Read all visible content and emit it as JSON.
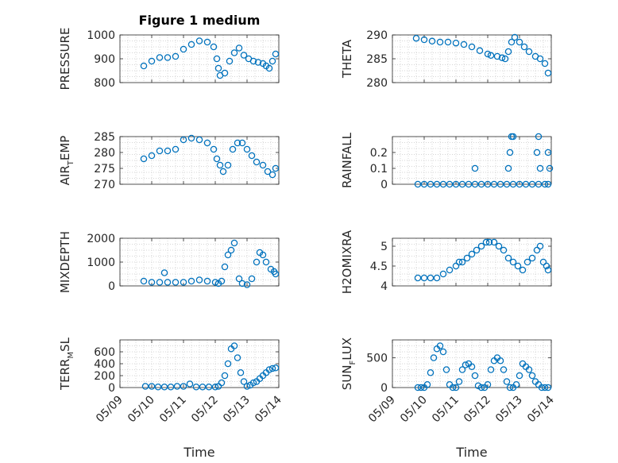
{
  "figure": {
    "title": "Figure 1 medium",
    "x_label": "Time",
    "x_ticks": [
      "05/09",
      "05/10",
      "05/11",
      "05/12",
      "05/13",
      "05/14"
    ]
  },
  "colors": {
    "marker": "#0072bd",
    "axis": "#262626",
    "grid": "#c8c8c8"
  },
  "chart_data": [
    {
      "type": "scatter",
      "ylabel_main": "PRESSURE",
      "ylabel_sub": "",
      "ylim": [
        800,
        1000
      ],
      "y_ticks": [
        800,
        900,
        1000
      ],
      "x": [
        9.75,
        10.0,
        10.25,
        10.5,
        10.75,
        11.0,
        11.25,
        11.5,
        11.75,
        11.95,
        12.05,
        12.1,
        12.15,
        12.3,
        12.45,
        12.6,
        12.75,
        12.9,
        13.05,
        13.2,
        13.35,
        13.5,
        13.6,
        13.7,
        13.8,
        13.9
      ],
      "y": [
        870,
        890,
        905,
        905,
        910,
        940,
        960,
        975,
        970,
        950,
        900,
        860,
        830,
        840,
        890,
        925,
        945,
        915,
        900,
        890,
        885,
        880,
        870,
        860,
        890,
        920
      ]
    },
    {
      "type": "scatter",
      "ylabel_main": "THETA",
      "ylabel_sub": "",
      "ylim": [
        280,
        290
      ],
      "y_ticks": [
        280,
        285,
        290
      ],
      "x": [
        9.75,
        10.0,
        10.25,
        10.5,
        10.75,
        11.0,
        11.25,
        11.5,
        11.75,
        12.0,
        12.1,
        12.3,
        12.45,
        12.55,
        12.65,
        12.75,
        12.85,
        13.0,
        13.15,
        13.3,
        13.5,
        13.65,
        13.8,
        13.9
      ],
      "y": [
        289.3,
        289.0,
        288.7,
        288.5,
        288.5,
        288.3,
        288.0,
        287.5,
        286.7,
        286.0,
        285.7,
        285.5,
        285.2,
        285.0,
        286.5,
        288.5,
        289.5,
        288.5,
        287.5,
        286.5,
        285.5,
        285.0,
        284.0,
        282.0
      ]
    },
    {
      "type": "scatter",
      "ylabel_main": "AIR",
      "ylabel_sub": "T",
      "ylabel_rest": "EMP",
      "ylim": [
        270,
        285
      ],
      "y_ticks": [
        270,
        275,
        280,
        285
      ],
      "x": [
        9.75,
        10.0,
        10.25,
        10.5,
        10.75,
        11.0,
        11.25,
        11.5,
        11.75,
        11.95,
        12.05,
        12.15,
        12.25,
        12.4,
        12.55,
        12.7,
        12.85,
        13.0,
        13.15,
        13.3,
        13.5,
        13.65,
        13.8,
        13.9
      ],
      "y": [
        278,
        279,
        280.5,
        280.5,
        281,
        284,
        284.5,
        284,
        283,
        281,
        278,
        276,
        274,
        276,
        281,
        283,
        283,
        281,
        279,
        277,
        276,
        274,
        273,
        275
      ]
    },
    {
      "type": "scatter",
      "ylabel_main": "RAINFALL",
      "ylabel_sub": "",
      "ylim": [
        0,
        0.3
      ],
      "y_ticks": [
        0,
        0.1,
        0.2
      ],
      "x": [
        9.8,
        10.0,
        10.2,
        10.4,
        10.6,
        10.8,
        11.0,
        11.2,
        11.4,
        11.6,
        11.8,
        12.0,
        12.2,
        12.4,
        12.6,
        12.8,
        13.0,
        13.2,
        13.4,
        13.6,
        13.8,
        13.9,
        11.6,
        12.65,
        12.7,
        12.75,
        12.8,
        13.55,
        13.6,
        13.65,
        13.9,
        13.95
      ],
      "y": [
        0,
        0,
        0,
        0,
        0,
        0,
        0,
        0,
        0,
        0,
        0,
        0,
        0,
        0,
        0,
        0,
        0,
        0,
        0,
        0,
        0,
        0,
        0.1,
        0.1,
        0.2,
        0.3,
        0.3,
        0.2,
        0.3,
        0.1,
        0.2,
        0.1
      ]
    },
    {
      "type": "scatter",
      "ylabel_main": "MIXDEPTH",
      "ylabel_sub": "",
      "ylim": [
        0,
        2000
      ],
      "y_ticks": [
        0,
        1000,
        2000
      ],
      "x": [
        9.75,
        10.0,
        10.25,
        10.4,
        10.5,
        10.75,
        11.0,
        11.25,
        11.5,
        11.75,
        12.0,
        12.1,
        12.2,
        12.3,
        12.4,
        12.5,
        12.6,
        12.75,
        12.85,
        13.0,
        13.15,
        13.3,
        13.4,
        13.5,
        13.6,
        13.75,
        13.85,
        13.9
      ],
      "y": [
        200,
        150,
        150,
        550,
        150,
        150,
        150,
        200,
        250,
        200,
        150,
        100,
        200,
        800,
        1300,
        1500,
        1800,
        300,
        100,
        50,
        300,
        1000,
        1400,
        1300,
        1000,
        700,
        600,
        500
      ]
    },
    {
      "type": "scatter",
      "ylabel_main": "H2OMIXRA",
      "ylabel_sub": "",
      "ylim": [
        4,
        5.2
      ],
      "y_ticks": [
        4,
        4.5,
        5
      ],
      "x": [
        9.8,
        10.0,
        10.2,
        10.4,
        10.6,
        10.8,
        11.0,
        11.1,
        11.2,
        11.35,
        11.5,
        11.65,
        11.8,
        11.95,
        12.05,
        12.2,
        12.35,
        12.5,
        12.65,
        12.8,
        12.95,
        13.1,
        13.25,
        13.4,
        13.55,
        13.65,
        13.75,
        13.85,
        13.9
      ],
      "y": [
        4.2,
        4.2,
        4.2,
        4.2,
        4.3,
        4.4,
        4.5,
        4.6,
        4.6,
        4.7,
        4.8,
        4.9,
        5.0,
        5.1,
        5.1,
        5.1,
        5.0,
        4.9,
        4.7,
        4.6,
        4.5,
        4.4,
        4.6,
        4.7,
        4.9,
        5.0,
        4.6,
        4.5,
        4.4
      ]
    },
    {
      "type": "scatter",
      "ylabel_main": "TERR",
      "ylabel_sub": "M",
      "ylabel_rest": "SL",
      "ylim": [
        0,
        800
      ],
      "y_ticks": [
        0,
        200,
        400,
        600
      ],
      "x": [
        9.8,
        10.0,
        10.2,
        10.4,
        10.6,
        10.8,
        11.0,
        11.2,
        11.4,
        11.6,
        11.8,
        12.0,
        12.1,
        12.2,
        12.3,
        12.4,
        12.5,
        12.6,
        12.7,
        12.8,
        12.9,
        13.0,
        13.1,
        13.2,
        13.3,
        13.4,
        13.5,
        13.6,
        13.7,
        13.8,
        13.9
      ],
      "y": [
        20,
        20,
        10,
        10,
        10,
        20,
        20,
        60,
        10,
        10,
        10,
        10,
        20,
        80,
        200,
        400,
        650,
        700,
        500,
        250,
        100,
        20,
        40,
        80,
        100,
        150,
        200,
        250,
        300,
        320,
        330
      ]
    },
    {
      "type": "scatter",
      "ylabel_main": "SUN",
      "ylabel_sub": "F",
      "ylabel_rest": "LUX",
      "ylim": [
        0,
        800
      ],
      "y_ticks": [
        0,
        500
      ],
      "x": [
        9.8,
        9.9,
        10.0,
        10.1,
        10.2,
        10.3,
        10.4,
        10.5,
        10.6,
        10.7,
        10.8,
        10.9,
        11.0,
        11.1,
        11.2,
        11.3,
        11.4,
        11.5,
        11.6,
        11.7,
        11.8,
        11.9,
        12.0,
        12.1,
        12.2,
        12.3,
        12.4,
        12.5,
        12.6,
        12.7,
        12.8,
        12.9,
        13.0,
        13.1,
        13.2,
        13.3,
        13.4,
        13.5,
        13.6,
        13.7,
        13.8,
        13.9
      ],
      "y": [
        0,
        0,
        0,
        50,
        250,
        500,
        650,
        700,
        600,
        300,
        50,
        0,
        0,
        100,
        300,
        380,
        400,
        350,
        200,
        30,
        0,
        0,
        50,
        300,
        450,
        500,
        450,
        300,
        100,
        0,
        0,
        50,
        200,
        400,
        350,
        300,
        200,
        100,
        50,
        0,
        0,
        0
      ]
    }
  ]
}
